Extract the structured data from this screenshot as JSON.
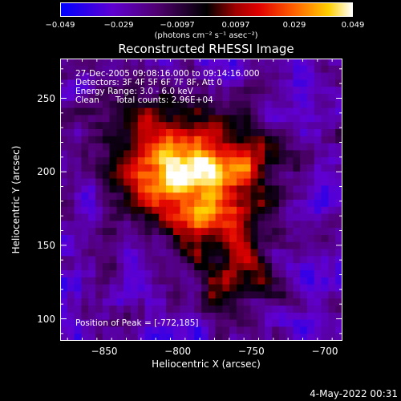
{
  "colorbar": {
    "ticks": [
      "−0.049",
      "−0.029",
      "−0.0097",
      "0.0097",
      "0.029",
      "0.049"
    ],
    "units_label": "(photons cm⁻² s⁻¹ asec⁻²)",
    "colors": [
      "#0000ff",
      "#8000c0",
      "#000000",
      "#e00000",
      "#ff8000",
      "#ffff00",
      "#ffffff"
    ]
  },
  "title": "Reconstructed RHESSI Image",
  "info": {
    "line1": "27-Dec-2005 09:08:16.000 to 09:14:16.000",
    "line2": "Detectors: 3F 4F 5F 6F 7F 8F, Att 0",
    "line3": "Energy Range: 3.0 - 6.0 keV",
    "line4": "Clean      Total counts: 2.96E+04",
    "peak": "Position of Peak = [-772,185]"
  },
  "footer": "4-May-2022 00:31",
  "chart_data": {
    "type": "heatmap",
    "title": "Reconstructed RHESSI Image",
    "xlabel": "Heliocentric X (arcsec)",
    "ylabel": "Heliocentric Y (arcsec)",
    "xlim": [
      -880,
      -688
    ],
    "ylim": [
      85,
      277
    ],
    "xticks": [
      -850,
      -800,
      -750,
      -700
    ],
    "yticks": [
      100,
      150,
      200,
      250
    ],
    "xtick_labels": [
      "−850",
      "−800",
      "−750",
      "−700"
    ],
    "ytick_labels": [
      "100",
      "150",
      "200",
      "250"
    ],
    "colorbar_range": [
      -0.049,
      0.049
    ],
    "peak_position": [
      -772,
      185
    ]
  }
}
